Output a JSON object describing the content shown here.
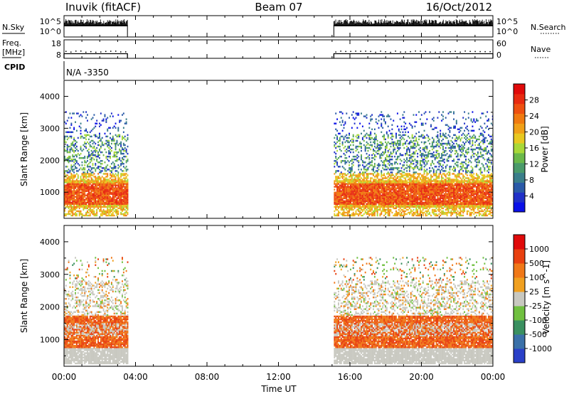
{
  "header": {
    "station": "Inuvik (fitACF)",
    "beam": "Beam 07",
    "date": "16/Oct/2012"
  },
  "chart_data": [
    {
      "type": "line",
      "name": "nsky-nsearch",
      "left_label": "N.Sky",
      "right_label": "N.Search",
      "left_ticks": [
        "10^5",
        "10^0"
      ],
      "right_ticks": [
        "10^5",
        "10^0"
      ],
      "active_intervals_hours": [
        [
          0.0,
          3.55
        ],
        [
          15.1,
          24.0
        ]
      ]
    },
    {
      "type": "line",
      "name": "freq-nave",
      "left_label_lines": [
        "Freq.",
        "[MHz]"
      ],
      "right_label": "Nave",
      "left_ticks": [
        "18",
        "8"
      ],
      "right_ticks": [
        "60",
        "0"
      ],
      "left_range": [
        8,
        18
      ],
      "right_range": [
        0,
        60
      ],
      "freq_level_mhz": 10.5,
      "nave_level": 23,
      "active_intervals_hours": [
        [
          0.0,
          3.55
        ],
        [
          15.1,
          24.0
        ]
      ]
    },
    {
      "type": "table",
      "name": "cpid",
      "label": "CPID",
      "value": "N/A -3350"
    },
    {
      "type": "heatmap",
      "name": "power",
      "ylabel": "Slant Range [km]",
      "ylim": [
        180,
        4500
      ],
      "yticks": [
        1000,
        2000,
        3000,
        4000
      ],
      "colorbar_label": "Power [dB]",
      "colorbar_ticks": [
        "28",
        "24",
        "20",
        "16",
        "12",
        "8",
        "4"
      ],
      "colors": [
        "#0a10e8",
        "#2030c8",
        "#2a5aa8",
        "#3a7e8a",
        "#4a9a6a",
        "#6ab84a",
        "#a8d838",
        "#e8c820",
        "#f0a018",
        "#f07a10",
        "#ee5010",
        "#e82a10",
        "#e00a0a"
      ],
      "echo_regions": [
        {
          "t": [
            0.0,
            3.55
          ],
          "range_km": [
            250,
            3500
          ]
        },
        {
          "t": [
            15.1,
            24.0
          ],
          "range_km": [
            250,
            3500
          ]
        }
      ]
    },
    {
      "type": "heatmap",
      "name": "velocity",
      "ylabel": "Slant Range [km]",
      "ylim": [
        180,
        4500
      ],
      "yticks": [
        1000,
        2000,
        3000,
        4000
      ],
      "colorbar_label": "Velocity [m s^-1]",
      "colorbar_ticks": [
        "1000",
        "500",
        "100",
        "25",
        "-25",
        "-100",
        "-500",
        "-1000"
      ],
      "colors": [
        "#2a40c8",
        "#3a70a8",
        "#3a9060",
        "#70c040",
        "#c8c8c0",
        "#f0a020",
        "#f07818",
        "#e84010",
        "#e00a0a"
      ],
      "ground_scatter_color": "#c8c8c0",
      "echo_regions": [
        {
          "t": [
            0.0,
            3.55
          ],
          "range_km": [
            250,
            3500
          ]
        },
        {
          "t": [
            15.1,
            24.0
          ],
          "range_km": [
            250,
            3500
          ]
        }
      ]
    }
  ],
  "time_axis": {
    "xlabel": "Time UT",
    "xlim": [
      0,
      24
    ],
    "ticks": [
      "00:00",
      "04:00",
      "08:00",
      "12:00",
      "16:00",
      "20:00",
      "00:00"
    ]
  }
}
